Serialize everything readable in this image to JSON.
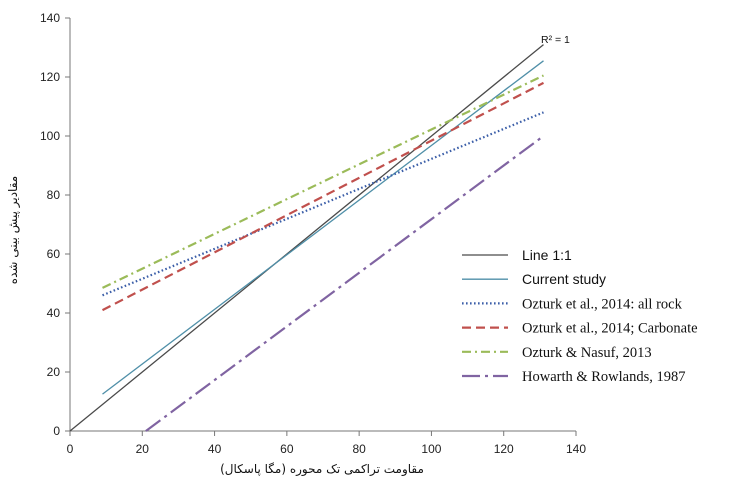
{
  "chart_data": {
    "type": "line",
    "title": "",
    "xlabel": "مقاومت تراکمی تک محوره (مگا پاسکال)",
    "ylabel": "مقادیر پیش بینی شده",
    "xlim": [
      0,
      140
    ],
    "ylim": [
      0,
      140
    ],
    "xticks": [
      0,
      20,
      40,
      60,
      80,
      100,
      120,
      140
    ],
    "yticks": [
      0,
      20,
      40,
      60,
      80,
      100,
      120,
      140
    ],
    "grid": false,
    "legend_position": "right-bottom",
    "annotation": "R² = 1",
    "series": [
      {
        "name": "Line 1:1",
        "color": "#4a4a4a",
        "dash": "solid",
        "x": [
          0,
          131
        ],
        "y": [
          0,
          131
        ]
      },
      {
        "name": "Current study",
        "color": "#4f8fa8",
        "dash": "solid",
        "x": [
          9,
          131
        ],
        "y": [
          12.5,
          125.5
        ]
      },
      {
        "name": "Ozturk et al., 2014: all rock",
        "color": "#3b5ea8",
        "dash": "dot",
        "x": [
          9,
          131
        ],
        "y": [
          46,
          108
        ]
      },
      {
        "name": "Ozturk et al., 2014; Carbonate",
        "color": "#c0504d",
        "dash": "dash",
        "x": [
          9,
          131
        ],
        "y": [
          41,
          118
        ]
      },
      {
        "name": "Ozturk & Nasuf, 2013",
        "color": "#9bbb59",
        "dash": "dashdot",
        "x": [
          9,
          131
        ],
        "y": [
          48.5,
          120.5
        ]
      },
      {
        "name": "Howarth & Rowlands, 1987",
        "color": "#8064a2",
        "dash": "longdashdot",
        "x": [
          21,
          131
        ],
        "y": [
          0,
          100
        ]
      }
    ]
  }
}
